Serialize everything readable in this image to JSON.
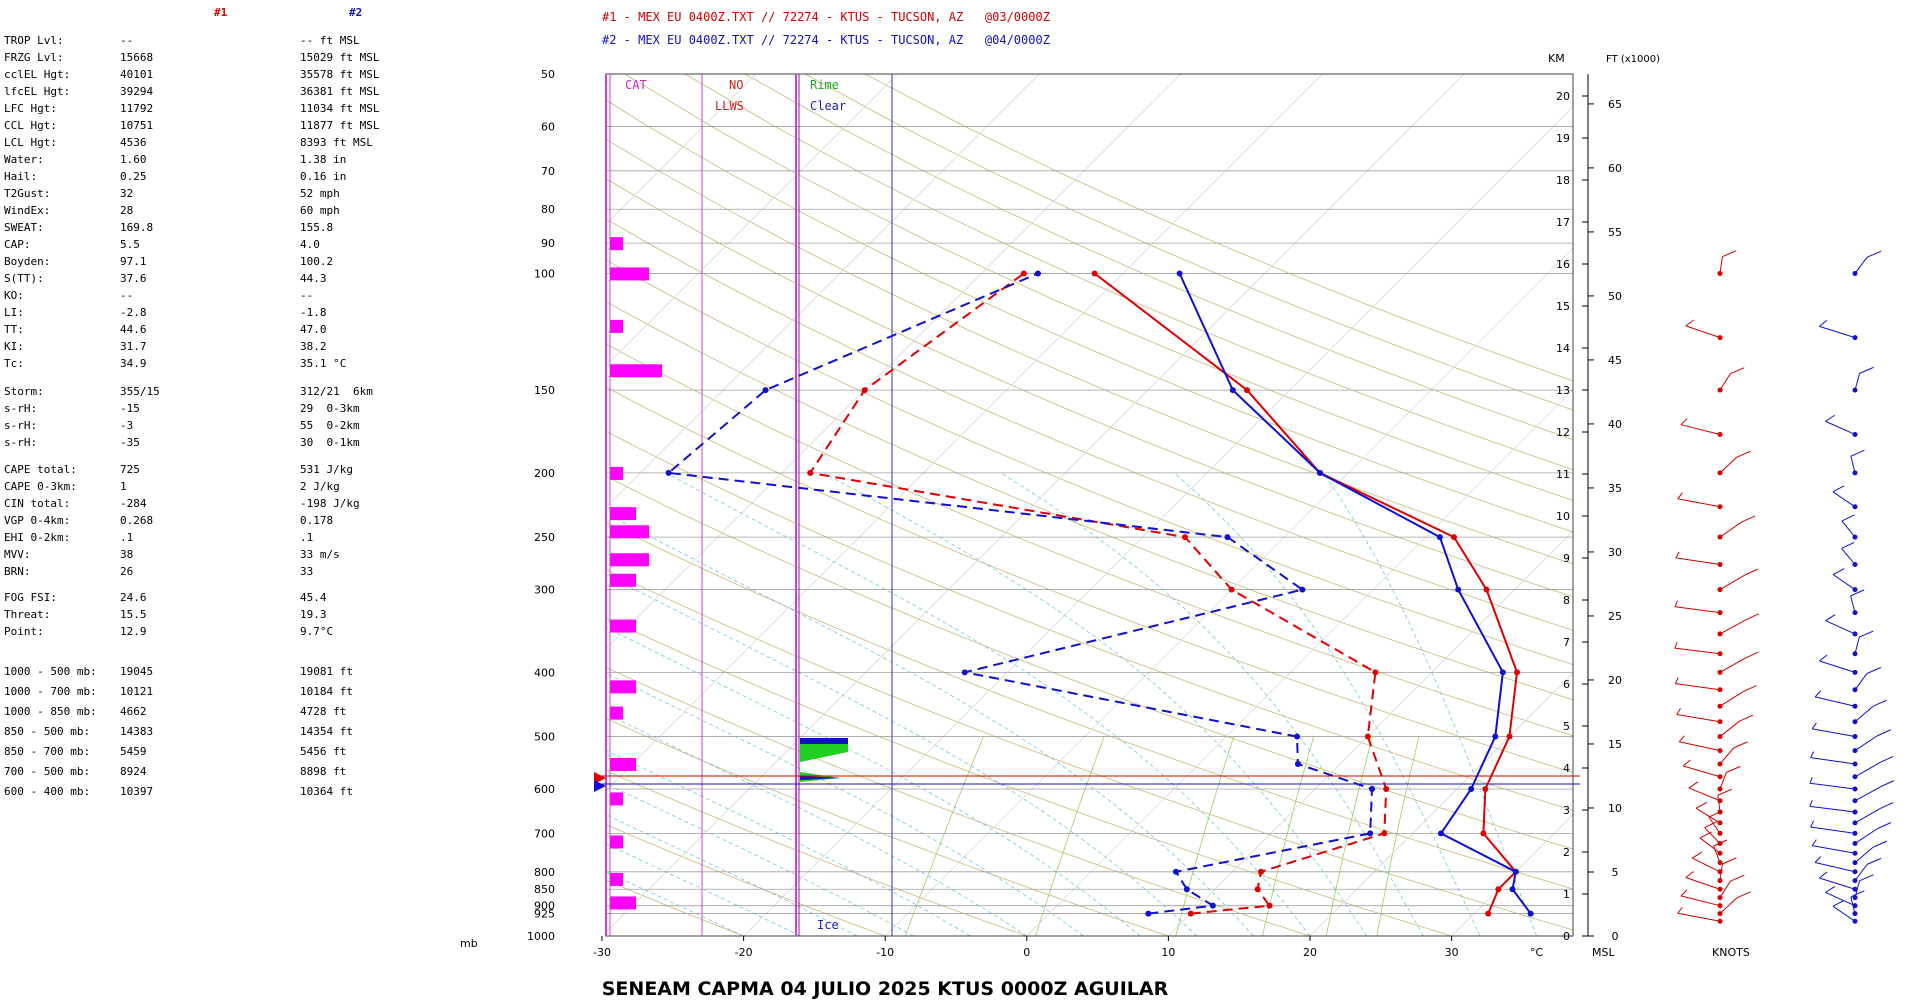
{
  "header": {
    "legend1": "#1 - MEX EU 0400Z.TXT // 72274 - KTUS - TUCSON, AZ   @03/0000Z",
    "legend2": "#2 - MEX EU 0400Z.TXT // 72274 - KTUS - TUCSON, AZ   @04/0000Z",
    "col1": "#1",
    "col2": "#2",
    "color1": "#e00000",
    "color2": "#1010d0"
  },
  "stats": [
    {
      "label": "TROP Lvl:",
      "v1": "--",
      "v2": "-- ft MSL"
    },
    {
      "label": "FRZG Lvl:",
      "v1": "15668",
      "v2": "15029 ft MSL"
    },
    {
      "label": "cclEL Hgt:",
      "v1": "40101",
      "v2": "35578 ft MSL"
    },
    {
      "label": "lfcEL Hgt:",
      "v1": "39294",
      "v2": "36381 ft MSL"
    },
    {
      "label": "LFC Hgt:",
      "v1": "11792",
      "v2": "11034 ft MSL"
    },
    {
      "label": "CCL Hgt:",
      "v1": "10751",
      "v2": "11877 ft MSL"
    },
    {
      "label": "LCL Hgt:",
      "v1": "4536",
      "v2": "8393 ft MSL"
    },
    {
      "label": "Water:",
      "v1": "1.60",
      "v2": "1.38 in"
    },
    {
      "label": "Hail:",
      "v1": "0.25",
      "v2": "0.16 in"
    },
    {
      "label": "T2Gust:",
      "v1": "32",
      "v2": "52 mph"
    },
    {
      "label": "WindEx:",
      "v1": "28",
      "v2": "60 mph"
    },
    {
      "label": "SWEAT:",
      "v1": "169.8",
      "v2": "155.8"
    },
    {
      "label": "CAP:",
      "v1": "5.5",
      "v2": "4.0"
    },
    {
      "label": "Boyden:",
      "v1": "97.1",
      "v2": "100.2"
    },
    {
      "label": "S(TT):",
      "v1": "37.6",
      "v2": "44.3"
    },
    {
      "label": "KO:",
      "v1": "--",
      "v2": "--"
    },
    {
      "label": "LI:",
      "v1": "-2.8",
      "v2": "-1.8"
    },
    {
      "label": "TT:",
      "v1": "44.6",
      "v2": "47.0"
    },
    {
      "label": "KI:",
      "v1": "31.7",
      "v2": "38.2"
    },
    {
      "label": "Tc:",
      "v1": "34.9",
      "v2": "35.1 °C"
    }
  ],
  "storm": [
    {
      "label": "Storm:",
      "v1": "355/15",
      "v2": "312/21  6km"
    },
    {
      "label": "s-rH:",
      "v1": "-15",
      "v2": "29  0-3km"
    },
    {
      "label": "s-rH:",
      "v1": "-3",
      "v2": "55  0-2km"
    },
    {
      "label": "s-rH:",
      "v1": "-35",
      "v2": "30  0-1km"
    }
  ],
  "cape": [
    {
      "label": "CAPE total:",
      "v1": "725",
      "v2": "531 J/kg"
    },
    {
      "label": "CAPE 0-3km:",
      "v1": "1",
      "v2": "2 J/kg"
    },
    {
      "label": "CIN total:",
      "v1": "-284",
      "v2": "-198 J/kg"
    },
    {
      "label": "VGP 0-4km:",
      "v1": "0.268",
      "v2": "0.178"
    },
    {
      "label": "EHI 0-2km:",
      "v1": ".1",
      "v2": ".1"
    },
    {
      "label": "MVV:",
      "v1": "38",
      "v2": "33 m/s"
    },
    {
      "label": "BRN:",
      "v1": "26",
      "v2": "33"
    }
  ],
  "fog": [
    {
      "label": "FOG FSI:",
      "v1": "24.6",
      "v2": "45.4"
    },
    {
      "label": "Threat:",
      "v1": "15.5",
      "v2": "19.3"
    },
    {
      "label": "Point:",
      "v1": "12.9",
      "v2": "9.7°C"
    }
  ],
  "thickness": [
    {
      "label": "1000 - 500 mb:",
      "v1": "19045",
      "v2": "19081 ft"
    },
    {
      "label": "1000 - 700 mb:",
      "v1": "10121",
      "v2": "10184 ft"
    },
    {
      "label": "1000 - 850 mb:",
      "v1": "4662",
      "v2": "4728 ft"
    },
    {
      "label": "850 - 500 mb:",
      "v1": "14383",
      "v2": "14354 ft"
    },
    {
      "label": "850 - 700 mb:",
      "v1": "5459",
      "v2": "5456 ft"
    },
    {
      "label": "700 - 500 mb:",
      "v1": "8924",
      "v2": "8898 ft"
    },
    {
      "label": "600 - 400 mb:",
      "v1": "10397",
      "v2": "10364 ft"
    }
  ],
  "mb_unit": "mb",
  "title": "SENEAM  CAPMA  04 JULIO 2025   KTUS   0000Z  AGUILAR",
  "chart_data": {
    "type": "skew-t",
    "pressure_levels": [
      50,
      60,
      70,
      80,
      90,
      100,
      150,
      200,
      250,
      300,
      400,
      500,
      600,
      700,
      800,
      850,
      900,
      925,
      1000
    ],
    "temp_ticks": [
      -30,
      -20,
      -10,
      0,
      10,
      20,
      30
    ],
    "temp_unit": "°C",
    "km_ticks": [
      0,
      1,
      2,
      3,
      4,
      5,
      6,
      7,
      8,
      9,
      10,
      11,
      12,
      13,
      14,
      15,
      16,
      17,
      18,
      19,
      20
    ],
    "ft_ticks": [
      0,
      5,
      10,
      15,
      20,
      25,
      30,
      35,
      40,
      45,
      50,
      55,
      60,
      65
    ],
    "km_label": "KM",
    "ft_label": "FT (x1000)",
    "msl_label": "MSL",
    "knots_label": "KNOTS",
    "icing_labels": {
      "cat": "CAT",
      "no": "NO",
      "llws": "LLWS",
      "rime": "Rime",
      "clear": "Clear",
      "ice": "Ice"
    },
    "series": [
      {
        "name": "#1",
        "color": "#e00000",
        "temp": [
          [
            925,
            31
          ],
          [
            850,
            30
          ],
          [
            800,
            30
          ],
          [
            700,
            25
          ],
          [
            600,
            22
          ],
          [
            500,
            20
          ],
          [
            400,
            16
          ],
          [
            300,
            8
          ],
          [
            250,
            2
          ],
          [
            200,
            -12
          ],
          [
            150,
            -23
          ],
          [
            100,
            -42
          ]
        ],
        "dewp": [
          [
            925,
            10
          ],
          [
            900,
            15
          ],
          [
            850,
            13
          ],
          [
            800,
            12
          ],
          [
            700,
            18
          ],
          [
            600,
            15
          ],
          [
            500,
            10
          ],
          [
            400,
            6
          ],
          [
            300,
            -10
          ],
          [
            250,
            -17
          ],
          [
            200,
            -48
          ],
          [
            150,
            -50
          ],
          [
            100,
            -47
          ]
        ]
      },
      {
        "name": "#2",
        "color": "#1010d0",
        "temp": [
          [
            925,
            34
          ],
          [
            850,
            31
          ],
          [
            800,
            30
          ],
          [
            700,
            22
          ],
          [
            600,
            21
          ],
          [
            500,
            19
          ],
          [
            400,
            15
          ],
          [
            300,
            6
          ],
          [
            250,
            1
          ],
          [
            200,
            -12
          ],
          [
            150,
            -24
          ],
          [
            100,
            -36
          ]
        ],
        "dewp": [
          [
            925,
            7
          ],
          [
            900,
            11
          ],
          [
            850,
            8
          ],
          [
            800,
            6
          ],
          [
            700,
            17
          ],
          [
            600,
            14
          ],
          [
            550,
            7
          ],
          [
            500,
            5
          ],
          [
            400,
            -23
          ],
          [
            300,
            -5
          ],
          [
            250,
            -14
          ],
          [
            200,
            -58
          ],
          [
            150,
            -57
          ],
          [
            100,
            -46
          ]
        ]
      }
    ],
    "bars_cat": [
      [
        90,
        1
      ],
      [
        100,
        3
      ],
      [
        120,
        1
      ],
      [
        140,
        4
      ],
      [
        200,
        1
      ],
      [
        230,
        2
      ],
      [
        245,
        3
      ],
      [
        270,
        3
      ],
      [
        290,
        2
      ],
      [
        340,
        2
      ],
      [
        420,
        2
      ],
      [
        460,
        1
      ],
      [
        550,
        2
      ],
      [
        620,
        1
      ],
      [
        720,
        1
      ],
      [
        820,
        1
      ],
      [
        890,
        2
      ]
    ],
    "freezing_level_mb": [
      575,
      585
    ]
  }
}
